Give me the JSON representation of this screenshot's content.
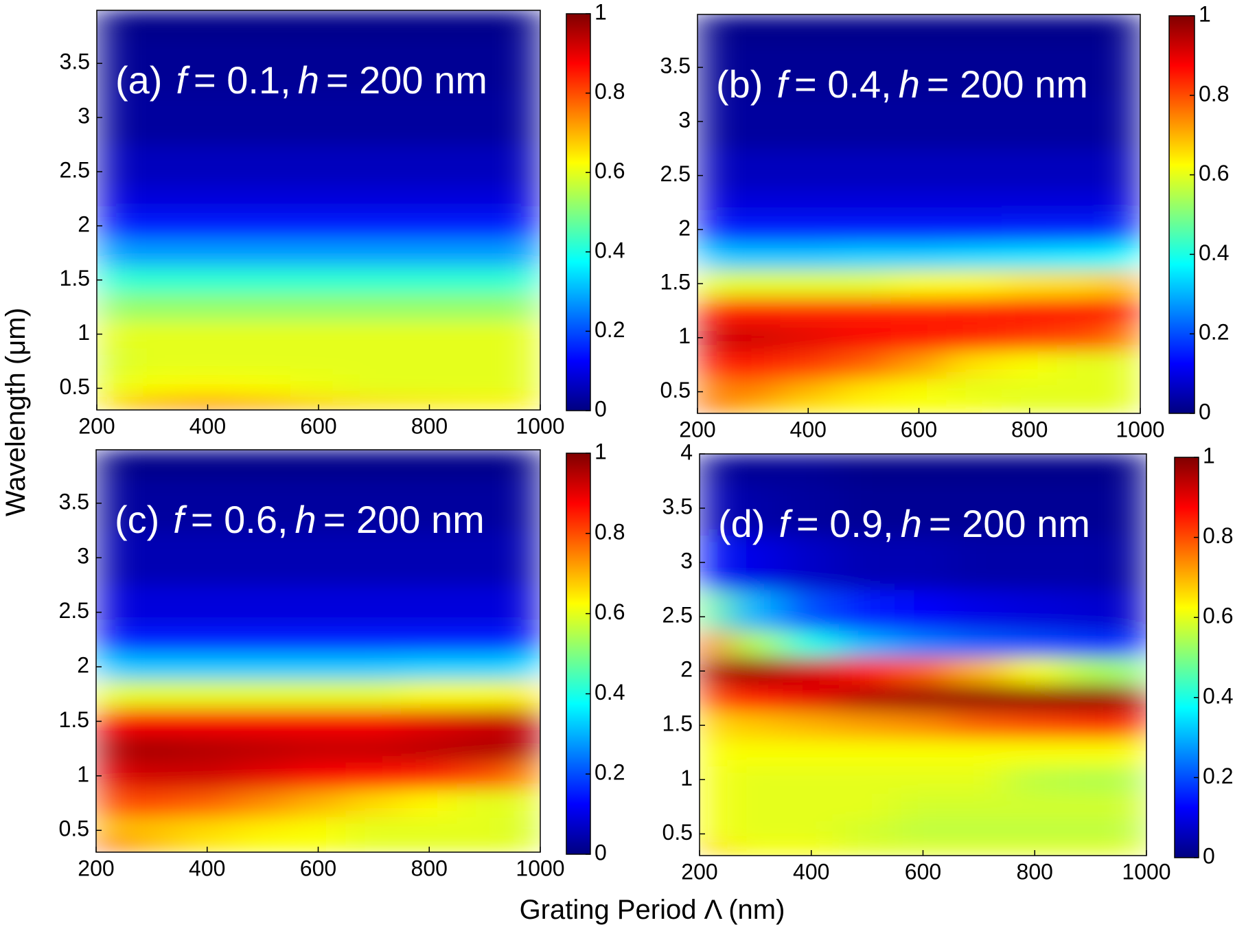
{
  "xlabel": "Grating Period Λ (nm)",
  "ylabel": "Wavelength (μm)",
  "chart_data": [
    {
      "type": "heatmap",
      "panel_label": "(a)",
      "title": [
        "f",
        "= 0.1,",
        "h",
        "= 200 nm"
      ],
      "colormap": "jet",
      "x": [
        200,
        300,
        400,
        500,
        600,
        700,
        800,
        900,
        1000
      ],
      "y": [
        0.35,
        0.5,
        0.75,
        1,
        1.25,
        1.5,
        1.75,
        2,
        2.25,
        2.5,
        3,
        3.5,
        3.95
      ],
      "z": [
        [
          0.65,
          0.72,
          0.75,
          0.72,
          0.68,
          0.66,
          0.65,
          0.64,
          0.64
        ],
        [
          0.6,
          0.62,
          0.63,
          0.62,
          0.61,
          0.6,
          0.6,
          0.6,
          0.6
        ],
        [
          0.58,
          0.6,
          0.6,
          0.6,
          0.6,
          0.6,
          0.6,
          0.6,
          0.6
        ],
        [
          0.6,
          0.6,
          0.6,
          0.6,
          0.6,
          0.6,
          0.6,
          0.6,
          0.6
        ],
        [
          0.52,
          0.52,
          0.52,
          0.52,
          0.52,
          0.52,
          0.52,
          0.52,
          0.52
        ],
        [
          0.42,
          0.42,
          0.42,
          0.42,
          0.42,
          0.42,
          0.42,
          0.42,
          0.42
        ],
        [
          0.28,
          0.28,
          0.28,
          0.28,
          0.28,
          0.28,
          0.28,
          0.28,
          0.28
        ],
        [
          0.15,
          0.15,
          0.15,
          0.15,
          0.15,
          0.15,
          0.15,
          0.15,
          0.15
        ],
        [
          0.09,
          0.09,
          0.09,
          0.09,
          0.09,
          0.09,
          0.09,
          0.09,
          0.09
        ],
        [
          0.06,
          0.06,
          0.06,
          0.06,
          0.06,
          0.06,
          0.06,
          0.06,
          0.06
        ],
        [
          0.03,
          0.03,
          0.03,
          0.03,
          0.03,
          0.03,
          0.03,
          0.03,
          0.03
        ],
        [
          0.02,
          0.02,
          0.02,
          0.02,
          0.02,
          0.02,
          0.02,
          0.02,
          0.02
        ],
        [
          0.01,
          0.01,
          0.01,
          0.01,
          0.01,
          0.01,
          0.01,
          0.01,
          0.01
        ]
      ],
      "xlim": [
        200,
        1000
      ],
      "ylim": [
        0.3,
        3.99
      ],
      "xticks": [
        200,
        400,
        600,
        800,
        1000
      ],
      "yticks": [
        0.5,
        1,
        1.5,
        2,
        2.5,
        3,
        3.5
      ],
      "clim": [
        0,
        1
      ],
      "cticks": [
        0,
        0.2,
        0.4,
        0.6,
        0.8,
        1
      ]
    },
    {
      "type": "heatmap",
      "panel_label": "(b)",
      "title": [
        "f",
        "= 0.4,",
        "h",
        "= 200 nm"
      ],
      "colormap": "jet",
      "x": [
        200,
        300,
        400,
        500,
        600,
        700,
        800,
        900,
        1000
      ],
      "y": [
        0.35,
        0.5,
        0.75,
        1,
        1.25,
        1.5,
        1.75,
        2,
        2.25,
        2.5,
        3,
        3.5,
        3.95
      ],
      "z": [
        [
          0.8,
          0.7,
          0.65,
          0.63,
          0.62,
          0.62,
          0.6,
          0.6,
          0.6
        ],
        [
          0.75,
          0.75,
          0.7,
          0.65,
          0.62,
          0.6,
          0.6,
          0.6,
          0.6
        ],
        [
          0.85,
          0.85,
          0.82,
          0.78,
          0.72,
          0.65,
          0.62,
          0.6,
          0.6
        ],
        [
          0.92,
          0.92,
          0.9,
          0.88,
          0.86,
          0.84,
          0.82,
          0.8,
          0.75
        ],
        [
          0.85,
          0.85,
          0.84,
          0.84,
          0.84,
          0.85,
          0.86,
          0.86,
          0.87
        ],
        [
          0.6,
          0.6,
          0.6,
          0.6,
          0.62,
          0.63,
          0.65,
          0.66,
          0.7
        ],
        [
          0.32,
          0.32,
          0.32,
          0.33,
          0.33,
          0.34,
          0.35,
          0.36,
          0.38
        ],
        [
          0.15,
          0.15,
          0.15,
          0.15,
          0.15,
          0.15,
          0.16,
          0.16,
          0.17
        ],
        [
          0.09,
          0.09,
          0.09,
          0.09,
          0.09,
          0.09,
          0.09,
          0.09,
          0.09
        ],
        [
          0.06,
          0.06,
          0.06,
          0.06,
          0.06,
          0.06,
          0.06,
          0.06,
          0.06
        ],
        [
          0.03,
          0.03,
          0.03,
          0.03,
          0.03,
          0.03,
          0.03,
          0.03,
          0.03
        ],
        [
          0.02,
          0.02,
          0.02,
          0.02,
          0.02,
          0.02,
          0.02,
          0.02,
          0.02
        ],
        [
          0.01,
          0.01,
          0.01,
          0.01,
          0.01,
          0.01,
          0.01,
          0.01,
          0.01
        ]
      ],
      "xlim": [
        200,
        1000
      ],
      "ylim": [
        0.3,
        3.99
      ],
      "xticks": [
        200,
        400,
        600,
        800,
        1000
      ],
      "yticks": [
        0.5,
        1,
        1.5,
        2,
        2.5,
        3,
        3.5
      ],
      "clim": [
        0,
        1
      ],
      "cticks": [
        0,
        0.2,
        0.4,
        0.6,
        0.8,
        1
      ]
    },
    {
      "type": "heatmap",
      "panel_label": "(c)",
      "title": [
        "f",
        "= 0.6,",
        "h",
        "= 200 nm"
      ],
      "colormap": "jet",
      "x": [
        200,
        300,
        400,
        500,
        600,
        700,
        800,
        900,
        1000
      ],
      "y": [
        0.35,
        0.5,
        0.75,
        1,
        1.25,
        1.5,
        1.75,
        2,
        2.25,
        2.5,
        3,
        3.5,
        3.95
      ],
      "z": [
        [
          0.85,
          0.7,
          0.65,
          0.62,
          0.62,
          0.6,
          0.6,
          0.6,
          0.6
        ],
        [
          0.7,
          0.68,
          0.66,
          0.64,
          0.62,
          0.6,
          0.6,
          0.6,
          0.58
        ],
        [
          0.8,
          0.8,
          0.78,
          0.74,
          0.7,
          0.66,
          0.63,
          0.6,
          0.6
        ],
        [
          0.9,
          0.92,
          0.92,
          0.9,
          0.88,
          0.86,
          0.84,
          0.8,
          0.74
        ],
        [
          0.95,
          0.96,
          0.95,
          0.94,
          0.93,
          0.93,
          0.94,
          0.95,
          0.95
        ],
        [
          0.88,
          0.88,
          0.88,
          0.88,
          0.88,
          0.88,
          0.9,
          0.92,
          0.94
        ],
        [
          0.6,
          0.6,
          0.6,
          0.6,
          0.6,
          0.6,
          0.62,
          0.62,
          0.64
        ],
        [
          0.32,
          0.32,
          0.32,
          0.32,
          0.32,
          0.32,
          0.33,
          0.33,
          0.34
        ],
        [
          0.15,
          0.15,
          0.15,
          0.15,
          0.15,
          0.15,
          0.15,
          0.15,
          0.15
        ],
        [
          0.09,
          0.09,
          0.09,
          0.09,
          0.09,
          0.09,
          0.09,
          0.09,
          0.09
        ],
        [
          0.05,
          0.05,
          0.05,
          0.05,
          0.05,
          0.05,
          0.05,
          0.05,
          0.05
        ],
        [
          0.03,
          0.03,
          0.03,
          0.03,
          0.03,
          0.03,
          0.03,
          0.03,
          0.03
        ],
        [
          0.01,
          0.01,
          0.01,
          0.01,
          0.01,
          0.01,
          0.01,
          0.01,
          0.01
        ]
      ],
      "xlim": [
        200,
        1000
      ],
      "ylim": [
        0.3,
        3.99
      ],
      "xticks": [
        200,
        400,
        600,
        800,
        1000
      ],
      "yticks": [
        0.5,
        1,
        1.5,
        2,
        2.5,
        3,
        3.5
      ],
      "clim": [
        0,
        1
      ],
      "cticks": [
        0,
        0.2,
        0.4,
        0.6,
        0.8,
        1
      ]
    },
    {
      "type": "heatmap",
      "panel_label": "(d)",
      "title": [
        "f",
        "= 0.9,",
        "h",
        "= 200 nm"
      ],
      "colormap": "jet",
      "x": [
        200,
        300,
        400,
        500,
        600,
        700,
        800,
        900,
        1000
      ],
      "y": [
        0.35,
        0.5,
        0.75,
        1,
        1.25,
        1.5,
        1.75,
        2,
        2.25,
        2.5,
        3,
        3.5,
        3.95
      ],
      "z": [
        [
          0.68,
          0.62,
          0.62,
          0.6,
          0.6,
          0.6,
          0.6,
          0.6,
          0.6
        ],
        [
          0.62,
          0.6,
          0.6,
          0.58,
          0.56,
          0.56,
          0.56,
          0.56,
          0.56
        ],
        [
          0.62,
          0.6,
          0.6,
          0.6,
          0.58,
          0.58,
          0.58,
          0.58,
          0.58
        ],
        [
          0.62,
          0.6,
          0.6,
          0.6,
          0.6,
          0.6,
          0.56,
          0.55,
          0.55
        ],
        [
          0.62,
          0.62,
          0.62,
          0.62,
          0.62,
          0.62,
          0.62,
          0.62,
          0.62
        ],
        [
          0.66,
          0.68,
          0.7,
          0.72,
          0.74,
          0.78,
          0.8,
          0.82,
          0.85
        ],
        [
          0.8,
          0.85,
          0.9,
          0.95,
          0.97,
          0.98,
          0.98,
          0.98,
          0.96
        ],
        [
          0.95,
          0.97,
          0.92,
          0.85,
          0.78,
          0.7,
          0.62,
          0.55,
          0.5
        ],
        [
          0.8,
          0.55,
          0.4,
          0.3,
          0.25,
          0.22,
          0.2,
          0.18,
          0.15
        ],
        [
          0.5,
          0.3,
          0.2,
          0.15,
          0.12,
          0.1,
          0.09,
          0.08,
          0.07
        ],
        [
          0.15,
          0.1,
          0.07,
          0.05,
          0.05,
          0.04,
          0.04,
          0.04,
          0.03
        ],
        [
          0.06,
          0.04,
          0.03,
          0.02,
          0.02,
          0.02,
          0.02,
          0.02,
          0.02
        ],
        [
          0.03,
          0.02,
          0.02,
          0.01,
          0.01,
          0.01,
          0.01,
          0.01,
          0.01
        ]
      ],
      "xlim": [
        200,
        1000
      ],
      "ylim": [
        0.3,
        4
      ],
      "xticks": [
        200,
        400,
        600,
        800,
        1000
      ],
      "yticks": [
        0.5,
        1,
        1.5,
        2,
        2.5,
        3,
        3.5,
        4
      ],
      "clim": [
        0,
        1
      ],
      "cticks": [
        0,
        0.2,
        0.4,
        0.6,
        0.8,
        1
      ]
    }
  ]
}
